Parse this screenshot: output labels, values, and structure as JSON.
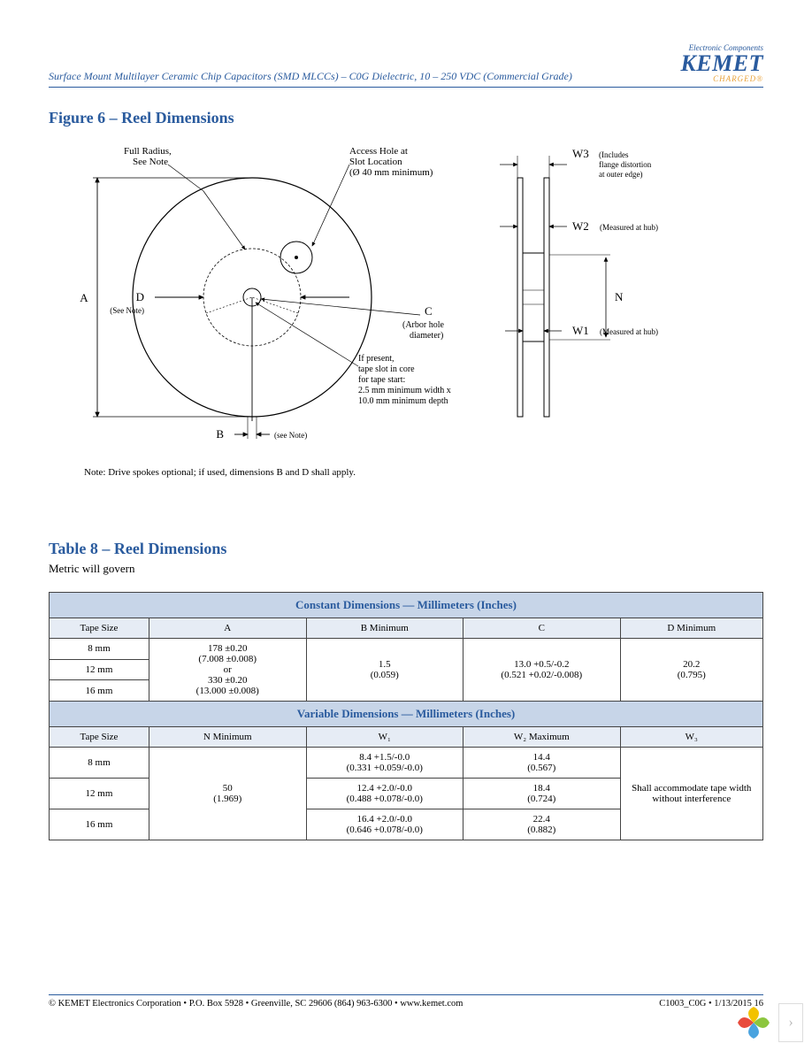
{
  "header": {
    "doc_title": "Surface Mount Multilayer Ceramic Chip Capacitors (SMD MLCCs) – C0G Dielectric, 10 – 250 VDC (Commercial Grade)",
    "logo_tagline": "Electronic Components",
    "logo_main": "KEMET",
    "logo_charged": "CHARGED®"
  },
  "figure": {
    "title": "Figure 6 – Reel Dimensions",
    "labels": {
      "full_radius": "Full Radius,\nSee Note",
      "access_hole": "Access Hole at\nSlot Location\n(Ø 40 mm minimum)",
      "if_present": "If present,\ntape slot in core\nfor tape start:\n2.5 mm minimum width x\n10.0 mm minimum depth",
      "A": "A",
      "B": "B",
      "B_note": "(see Note)",
      "C": "C",
      "C_note": "(Arbor hole\ndiameter)",
      "D": "D",
      "D_note": "(See Note)",
      "N": "N",
      "W1": "W1",
      "W1_note": "(Measured at hub)",
      "W2": "W2",
      "W2_note": "(Measured at hub)",
      "W3": "W3",
      "W3_note": "(Includes\nflange distortion\nat outer edge)"
    },
    "note": "Note:  Drive spokes optional; if used, dimensions B and D shall apply."
  },
  "table": {
    "title": "Table 8 – Reel Dimensions",
    "subcaption": "Metric will govern",
    "section1": "Constant Dimensions — Millimeters (Inches)",
    "cols1": [
      "Tape Size",
      "A",
      "B Minimum",
      "C",
      "D Minimum"
    ],
    "rows1": {
      "r1_c0": "8 mm",
      "r2_c0": "12 mm",
      "r3_c0": "16 mm",
      "a_val": "178 ±0.20\n(7.008 ±0.008)\nor\n330 ±0.20\n(13.000 ±0.008)",
      "b_val": "1.5\n(0.059)",
      "c_val": "13.0 +0.5/-0.2\n(0.521 +0.02/-0.008)",
      "d_val": "20.2\n(0.795)"
    },
    "section2": "Variable Dimensions — Millimeters (Inches)",
    "cols2": [
      "Tape Size",
      "N Minimum",
      "W₁",
      "W₂ Maximum",
      "W₃"
    ],
    "rows2": {
      "r1_c0": "8 mm",
      "r2_c0": "12 mm",
      "r3_c0": "16 mm",
      "n_val": "50\n(1.969)",
      "w1_a": "8.4 +1.5/-0.0\n(0.331 +0.059/-0.0)",
      "w1_b": "12.4 +2.0/-0.0\n(0.488 +0.078/-0.0)",
      "w1_c": "16.4 +2.0/-0.0\n(0.646 +0.078/-0.0)",
      "w2_a": "14.4\n(0.567)",
      "w2_b": "18.4\n(0.724)",
      "w2_c": "22.4\n(0.882)",
      "w3_val": "Shall accommodate tape width without interference"
    }
  },
  "footer": {
    "left": "© KEMET Electronics Corporation • P.O. Box 5928 • Greenville, SC 29606 (864) 963-6300 • www.kemet.com",
    "right": "C1003_C0G • 1/13/2015 16"
  },
  "colors": {
    "brand_blue": "#2a5b9e",
    "brand_orange": "#e8a23a",
    "table_header_bg": "#c7d5e8",
    "table_subheader_bg": "#e6ecf5",
    "border": "#444444"
  }
}
